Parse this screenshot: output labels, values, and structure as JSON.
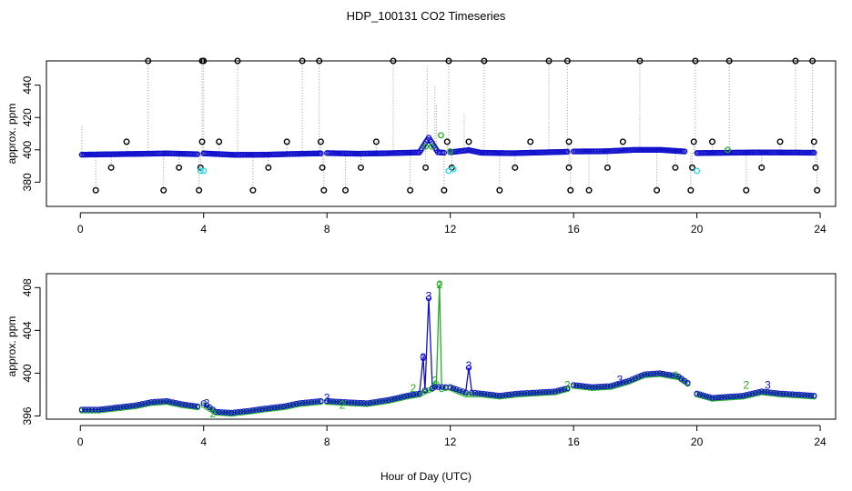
{
  "title": "HDP_100131  CO2 Timeseries",
  "shared_xlabel": "Hour of Day (UTC)",
  "colors": {
    "black": "#000000",
    "blue": "#1010cc",
    "green": "#20b020",
    "cyan": "#30d8e8",
    "gray": "#9a9a9a"
  },
  "chart_data": [
    {
      "type": "scatter",
      "panel": "top",
      "title": "",
      "xlabel": "",
      "ylabel": "approx. ppm",
      "xlim": [
        -1.1,
        24.5
      ],
      "ylim": [
        365,
        455
      ],
      "xticks": [
        0,
        4,
        8,
        12,
        16,
        20,
        24
      ],
      "yticks": [
        380,
        400,
        420,
        440
      ],
      "x_tick_labels": [
        "0",
        "4",
        "8",
        "12",
        "16",
        "20",
        "24"
      ],
      "y_tick_labels": [
        "380",
        "400",
        "420",
        "440"
      ],
      "series": [
        {
          "name": "baseline (blue)",
          "segments": [
            {
              "x": [
                0.05,
                2.2,
                2.8,
                3.8
              ],
              "y": [
                397.0,
                397.6,
                397.8,
                397.3
              ]
            },
            {
              "x": [
                4.0,
                5.0,
                6.0,
                7.0,
                7.8
              ],
              "y": [
                397.8,
                396.9,
                397.0,
                397.5,
                397.8
              ]
            },
            {
              "x": [
                8.0,
                9.0,
                10.0,
                11.0,
                11.3,
                11.6,
                11.8
              ],
              "y": [
                398.0,
                397.6,
                397.9,
                398.4,
                407.5,
                398.5,
                398.2
              ]
            },
            {
              "x": [
                12.0,
                12.6,
                13.0,
                14.0,
                15.0,
                15.8
              ],
              "y": [
                398.5,
                399.8,
                398.2,
                397.9,
                398.4,
                398.8
              ]
            },
            {
              "x": [
                16.0,
                17.0,
                18.0,
                18.8,
                19.6
              ],
              "y": [
                399.0,
                399.1,
                400.0,
                400.0,
                399.0
              ]
            },
            {
              "x": [
                20.0,
                21.0,
                22.0,
                23.0,
                23.8
              ],
              "y": [
                398.0,
                398.2,
                398.4,
                398.3,
                398.2
              ]
            }
          ]
        },
        {
          "name": "spikes (black)",
          "points": [
            [
              0.5,
              375
            ],
            [
              1.0,
              389
            ],
            [
              1.5,
              405
            ],
            [
              2.2,
              455
            ],
            [
              2.7,
              375
            ],
            [
              3.2,
              389
            ],
            [
              3.85,
              375
            ],
            [
              3.9,
              389
            ],
            [
              3.95,
              405
            ],
            [
              3.95,
              455
            ],
            [
              4.0,
              455
            ],
            [
              4.5,
              405
            ],
            [
              5.1,
              455
            ],
            [
              5.6,
              375
            ],
            [
              6.1,
              389
            ],
            [
              6.7,
              405
            ],
            [
              7.2,
              455
            ],
            [
              7.75,
              455
            ],
            [
              7.8,
              405
            ],
            [
              7.85,
              389
            ],
            [
              7.9,
              375
            ],
            [
              8.6,
              375
            ],
            [
              9.1,
              389
            ],
            [
              9.6,
              405
            ],
            [
              10.15,
              455
            ],
            [
              10.7,
              375
            ],
            [
              11.2,
              389
            ],
            [
              11.8,
              375
            ],
            [
              11.9,
              405
            ],
            [
              11.95,
              455
            ],
            [
              12.05,
              389
            ],
            [
              12.6,
              405
            ],
            [
              13.1,
              455
            ],
            [
              13.6,
              375
            ],
            [
              14.1,
              389
            ],
            [
              14.6,
              405
            ],
            [
              15.2,
              455
            ],
            [
              15.8,
              455
            ],
            [
              15.85,
              389
            ],
            [
              15.9,
              375
            ],
            [
              15.85,
              405
            ],
            [
              16.5,
              375
            ],
            [
              17.1,
              389
            ],
            [
              17.6,
              405
            ],
            [
              18.15,
              455
            ],
            [
              18.7,
              375
            ],
            [
              19.3,
              389
            ],
            [
              19.8,
              375
            ],
            [
              19.85,
              389
            ],
            [
              19.9,
              405
            ],
            [
              19.95,
              455
            ],
            [
              20.5,
              405
            ],
            [
              21.05,
              455
            ],
            [
              21.6,
              375
            ],
            [
              22.1,
              389
            ],
            [
              22.7,
              405
            ],
            [
              23.2,
              455
            ],
            [
              23.75,
              455
            ],
            [
              23.8,
              405
            ],
            [
              23.85,
              389
            ],
            [
              23.9,
              375
            ]
          ]
        },
        {
          "name": "green",
          "points": [
            [
              11.2,
              402
            ],
            [
              11.4,
              402
            ],
            [
              11.7,
              409
            ],
            [
              12.0,
              399
            ],
            [
              21.0,
              400
            ]
          ]
        },
        {
          "name": "cyan",
          "points": [
            [
              3.9,
              387
            ],
            [
              4.0,
              387
            ],
            [
              11.95,
              387
            ],
            [
              12.1,
              388
            ],
            [
              20.0,
              387
            ]
          ]
        }
      ]
    },
    {
      "type": "line",
      "panel": "bottom",
      "title": "",
      "xlabel": "Hour of Day (UTC)",
      "ylabel": "approx. ppm",
      "xlim": [
        -1.1,
        24.5
      ],
      "ylim": [
        395.7,
        409.3
      ],
      "xticks": [
        0,
        4,
        8,
        12,
        16,
        20,
        24
      ],
      "yticks": [
        396,
        400,
        404,
        408
      ],
      "x_tick_labels": [
        "0",
        "4",
        "8",
        "12",
        "16",
        "20",
        "24"
      ],
      "y_tick_labels": [
        "396",
        "400",
        "404",
        "408"
      ],
      "series": [
        {
          "name": "2",
          "color": "green",
          "segments": [
            {
              "x": [
                0.05,
                0.6,
                1.2,
                1.8,
                2.3,
                2.8,
                3.3,
                3.8
              ],
              "y": [
                396.5,
                396.5,
                396.7,
                396.9,
                397.2,
                397.3,
                397.0,
                396.8
              ]
            },
            {
              "x": [
                4.0,
                4.4,
                4.9,
                5.5,
                6.0,
                6.6,
                7.1,
                7.8
              ],
              "y": [
                397.0,
                396.3,
                396.2,
                396.4,
                396.6,
                396.8,
                397.1,
                397.3
              ]
            },
            {
              "x": [
                8.0,
                8.6,
                9.3,
                10.0,
                10.6,
                11.0,
                11.2,
                11.4,
                11.55,
                11.65,
                11.72,
                11.85
              ],
              "y": [
                397.3,
                397.2,
                397.1,
                397.4,
                397.8,
                398.0,
                398.3,
                398.5,
                399.0,
                408.3,
                398.5,
                398.6
              ]
            },
            {
              "x": [
                12.0,
                12.5,
                13.0,
                13.6,
                14.2,
                14.8,
                15.4,
                15.8
              ],
              "y": [
                398.6,
                398.0,
                398.0,
                397.8,
                398.0,
                398.1,
                398.2,
                398.5
              ]
            },
            {
              "x": [
                16.0,
                16.6,
                17.2,
                17.8,
                18.3,
                18.8,
                19.4,
                19.7
              ],
              "y": [
                398.8,
                398.6,
                398.7,
                399.2,
                399.8,
                399.9,
                399.6,
                399.0
              ]
            },
            {
              "x": [
                20.0,
                20.5,
                21.0,
                21.5,
                22.1,
                22.7,
                23.3,
                23.8
              ],
              "y": [
                398.0,
                397.6,
                397.7,
                397.8,
                398.2,
                398.0,
                397.9,
                397.8
              ]
            }
          ]
        },
        {
          "name": "3",
          "color": "blue",
          "segments": [
            {
              "x": [
                0.05,
                0.6,
                1.2,
                1.8,
                2.3,
                2.8,
                3.3,
                3.8
              ],
              "y": [
                396.6,
                396.6,
                396.8,
                397.0,
                397.3,
                397.4,
                397.1,
                396.9
              ]
            },
            {
              "x": [
                4.0,
                4.4,
                4.9,
                5.5,
                6.0,
                6.6,
                7.1,
                7.8
              ],
              "y": [
                397.2,
                396.4,
                396.3,
                396.5,
                396.7,
                396.9,
                397.2,
                397.4
              ]
            },
            {
              "x": [
                8.0,
                8.6,
                9.3,
                10.0,
                10.6,
                11.0,
                11.12,
                11.18,
                11.3,
                11.42,
                11.5,
                11.85
              ],
              "y": [
                397.4,
                397.3,
                397.2,
                397.5,
                397.9,
                398.1,
                401.5,
                398.4,
                407.0,
                398.6,
                398.7,
                398.7
              ]
            },
            {
              "x": [
                12.0,
                12.5,
                12.6,
                12.7,
                13.0,
                13.6,
                14.2,
                14.8,
                15.4,
                15.8
              ],
              "y": [
                398.7,
                398.2,
                400.5,
                398.2,
                398.1,
                397.9,
                398.1,
                398.2,
                398.3,
                398.6
              ]
            },
            {
              "x": [
                16.0,
                16.6,
                17.2,
                17.8,
                18.3,
                18.8,
                19.4,
                19.7
              ],
              "y": [
                398.9,
                398.7,
                398.8,
                399.3,
                399.9,
                400.0,
                399.7,
                399.1
              ]
            },
            {
              "x": [
                20.0,
                20.5,
                21.0,
                21.5,
                22.1,
                22.7,
                23.3,
                23.8
              ],
              "y": [
                398.1,
                397.7,
                397.8,
                397.9,
                398.3,
                398.1,
                398.0,
                397.9
              ]
            }
          ]
        }
      ],
      "digit_labels": [
        {
          "text": "2",
          "series": "2",
          "x": 11.65,
          "y": 408.3
        },
        {
          "text": "3",
          "series": "3",
          "x": 11.3,
          "y": 407.2
        },
        {
          "text": "3",
          "series": "3",
          "x": 11.12,
          "y": 401.5
        },
        {
          "text": "3",
          "series": "3",
          "x": 12.6,
          "y": 400.7
        },
        {
          "text": "2",
          "series": "2",
          "x": 11.5,
          "y": 399.3
        },
        {
          "text": "2",
          "series": "2",
          "x": 10.8,
          "y": 398.6
        },
        {
          "text": "3",
          "series": "3",
          "x": 8.0,
          "y": 397.7
        },
        {
          "text": "3",
          "series": "3",
          "x": 4.1,
          "y": 397.2
        },
        {
          "text": "2",
          "series": "2",
          "x": 4.3,
          "y": 396.2
        },
        {
          "text": "2",
          "series": "2",
          "x": 8.5,
          "y": 397.0
        },
        {
          "text": "3",
          "series": "3",
          "x": 17.5,
          "y": 399.4
        },
        {
          "text": "2",
          "series": "2",
          "x": 19.3,
          "y": 399.8
        },
        {
          "text": "2",
          "series": "2",
          "x": 15.8,
          "y": 398.9
        },
        {
          "text": "2",
          "series": "2",
          "x": 21.6,
          "y": 398.9
        },
        {
          "text": "3",
          "series": "3",
          "x": 22.3,
          "y": 398.9
        }
      ]
    }
  ]
}
